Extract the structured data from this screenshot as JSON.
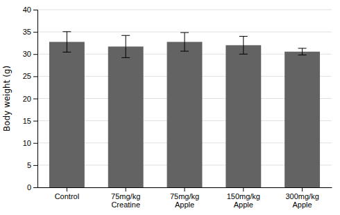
{
  "chart_data": {
    "type": "bar",
    "categories": [
      "Control",
      "75mg/kg\nCreatine",
      "75mg/kg\nApple",
      "150mg/kg\nApple",
      "300mg/kg\nApple"
    ],
    "values": [
      32.75,
      31.7,
      32.75,
      32.0,
      30.55
    ],
    "errors": [
      2.3,
      2.5,
      2.1,
      2.0,
      0.75
    ],
    "color": "#636363",
    "ylabel": "Body weight (g)",
    "ylim": [
      0,
      40
    ],
    "yticks": [
      0,
      5,
      10,
      15,
      20,
      25,
      30,
      35,
      40
    ],
    "grid": true
  }
}
